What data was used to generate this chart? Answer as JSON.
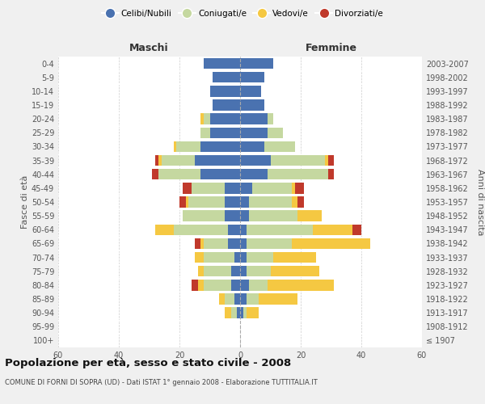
{
  "age_groups": [
    "100+",
    "95-99",
    "90-94",
    "85-89",
    "80-84",
    "75-79",
    "70-74",
    "65-69",
    "60-64",
    "55-59",
    "50-54",
    "45-49",
    "40-44",
    "35-39",
    "30-34",
    "25-29",
    "20-24",
    "15-19",
    "10-14",
    "5-9",
    "0-4"
  ],
  "birth_years": [
    "≤ 1907",
    "1908-1912",
    "1913-1917",
    "1918-1922",
    "1923-1927",
    "1928-1932",
    "1933-1937",
    "1938-1942",
    "1943-1947",
    "1948-1952",
    "1953-1957",
    "1958-1962",
    "1963-1967",
    "1968-1972",
    "1973-1977",
    "1978-1982",
    "1983-1987",
    "1988-1992",
    "1993-1997",
    "1998-2002",
    "2003-2007"
  ],
  "male_celibi": [
    0,
    0,
    1,
    2,
    3,
    3,
    2,
    4,
    4,
    5,
    5,
    5,
    13,
    15,
    13,
    10,
    10,
    9,
    10,
    9,
    12
  ],
  "male_coniugati": [
    0,
    0,
    2,
    3,
    9,
    9,
    10,
    8,
    18,
    14,
    12,
    11,
    14,
    11,
    8,
    3,
    2,
    0,
    0,
    0,
    0
  ],
  "male_vedovi": [
    0,
    0,
    2,
    2,
    2,
    2,
    3,
    1,
    6,
    0,
    1,
    0,
    0,
    1,
    1,
    0,
    1,
    0,
    0,
    0,
    0
  ],
  "male_divorziati": [
    0,
    0,
    0,
    0,
    2,
    0,
    0,
    2,
    0,
    0,
    2,
    3,
    2,
    1,
    0,
    0,
    0,
    0,
    0,
    0,
    0
  ],
  "female_nubili": [
    0,
    0,
    1,
    2,
    3,
    2,
    2,
    2,
    2,
    3,
    3,
    4,
    9,
    10,
    8,
    9,
    9,
    8,
    7,
    8,
    11
  ],
  "female_coniugate": [
    0,
    0,
    1,
    4,
    6,
    8,
    9,
    15,
    22,
    16,
    14,
    13,
    20,
    18,
    10,
    5,
    2,
    0,
    0,
    0,
    0
  ],
  "female_vedove": [
    0,
    0,
    4,
    13,
    22,
    16,
    14,
    26,
    13,
    8,
    2,
    1,
    0,
    1,
    0,
    0,
    0,
    0,
    0,
    0,
    0
  ],
  "female_divorziate": [
    0,
    0,
    0,
    0,
    0,
    0,
    0,
    0,
    3,
    0,
    2,
    3,
    2,
    2,
    0,
    0,
    0,
    0,
    0,
    0,
    0
  ],
  "colors": {
    "celibi_nubili": "#4a72b0",
    "coniugati": "#c5d8a0",
    "vedovi": "#f5c842",
    "divorziati": "#c0392b"
  },
  "xlim": 60,
  "title": "Popolazione per età, sesso e stato civile - 2008",
  "subtitle": "COMUNE DI FORNI DI SOPRA (UD) - Dati ISTAT 1° gennaio 2008 - Elaborazione TUTTITALIA.IT",
  "ylabel_left": "Fasce di età",
  "ylabel_right": "Anni di nascita",
  "header_left": "Maschi",
  "header_right": "Femmine",
  "legend_labels": [
    "Celibi/Nubili",
    "Coniugati/e",
    "Vedovi/e",
    "Divorziati/e"
  ],
  "bg_color": "#f0f0f0",
  "plot_bg": "#ffffff",
  "grid_color": "#cccccc",
  "xticks": [
    60,
    40,
    20,
    0,
    20,
    40,
    60
  ]
}
